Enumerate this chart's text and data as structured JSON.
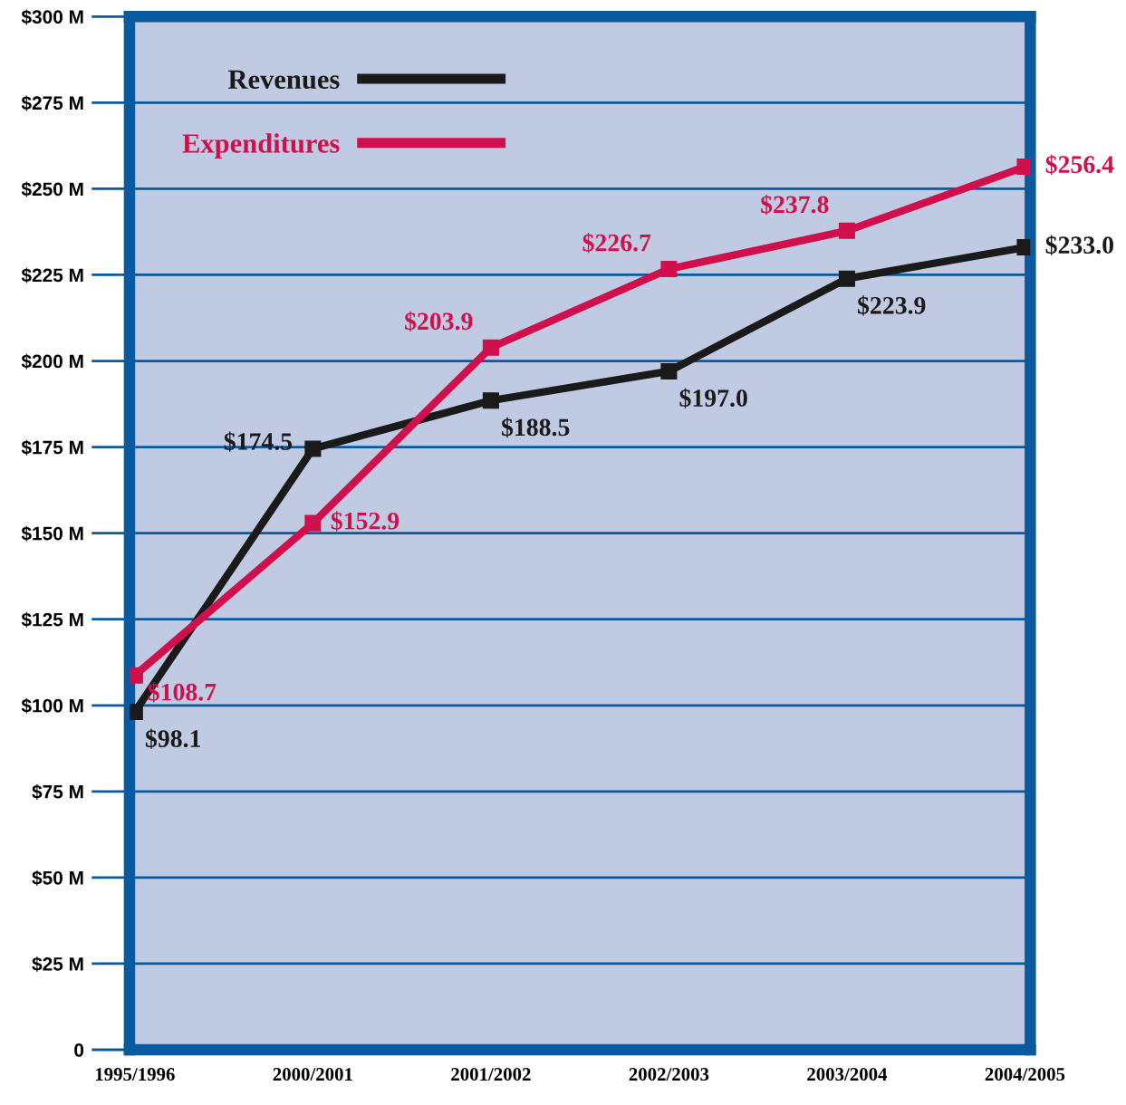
{
  "chart_data": {
    "type": "line",
    "categories": [
      "1995/1996",
      "2000/2001",
      "2001/2002",
      "2002/2003",
      "2003/2004",
      "2004/2005"
    ],
    "series": [
      {
        "name": "Revenues",
        "color": "#1a1a1a",
        "values": [
          98.1,
          174.5,
          188.5,
          197.0,
          223.9,
          233.0
        ],
        "value_labels": [
          "$98.1",
          "$174.5",
          "$188.5",
          "$197.0",
          "$223.9",
          "$233.0"
        ]
      },
      {
        "name": "Expenditures",
        "color": "#d0104c",
        "values": [
          108.7,
          152.9,
          203.9,
          226.7,
          237.8,
          256.4
        ],
        "value_labels": [
          "$108.7",
          "$152.9",
          "$203.9",
          "$226.7",
          "$237.8",
          "$256.4"
        ]
      }
    ],
    "ylim": [
      0,
      300
    ],
    "yticks": [
      {
        "value": 0,
        "label": "0"
      },
      {
        "value": 25,
        "label": "$25 M"
      },
      {
        "value": 50,
        "label": "$50 M"
      },
      {
        "value": 75,
        "label": "$75 M"
      },
      {
        "value": 100,
        "label": "$100 M"
      },
      {
        "value": 125,
        "label": "$125 M"
      },
      {
        "value": 150,
        "label": "$150 M"
      },
      {
        "value": 175,
        "label": "$175 M"
      },
      {
        "value": 200,
        "label": "$200 M"
      },
      {
        "value": 225,
        "label": "$225 M"
      },
      {
        "value": 250,
        "label": "$250 M"
      },
      {
        "value": 275,
        "label": "$275 M"
      },
      {
        "value": 300,
        "label": "$300 M"
      }
    ],
    "grid": "y",
    "legend": "top left",
    "marker": "square",
    "line_style": "solid"
  }
}
